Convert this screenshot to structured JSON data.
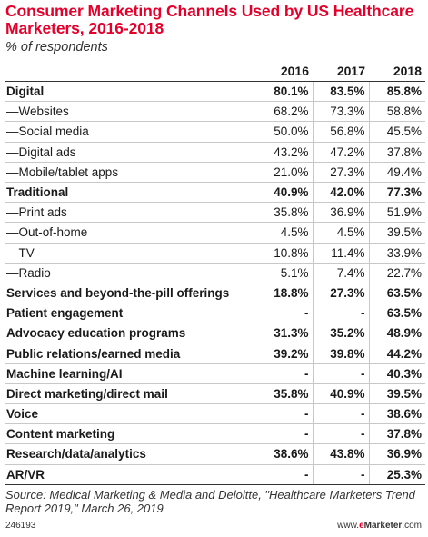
{
  "title": "Consumer Marketing Channels Used by US Healthcare Marketers, 2016-2018",
  "subtitle": "% of respondents",
  "source": "Source: Medical Marketing & Media and Deloitte, \"Healthcare Marketers Trend Report 2019,\" March 26, 2019",
  "chart_id": "246193",
  "website": {
    "prefix": "www.",
    "brand_e": "e",
    "brand_rest": "Marketer",
    "suffix": ".com"
  },
  "chart_data": {
    "type": "table",
    "title": "Consumer Marketing Channels Used by US Healthcare Marketers, 2016-2018",
    "subtitle": "% of respondents",
    "columns": [
      "2016",
      "2017",
      "2018"
    ],
    "rows": [
      {
        "label": "Digital",
        "bold": true,
        "values": [
          "80.1%",
          "83.5%",
          "85.8%"
        ]
      },
      {
        "label": "—Websites",
        "bold": false,
        "values": [
          "68.2%",
          "73.3%",
          "58.8%"
        ]
      },
      {
        "label": "—Social media",
        "bold": false,
        "values": [
          "50.0%",
          "56.8%",
          "45.5%"
        ]
      },
      {
        "label": "—Digital ads",
        "bold": false,
        "values": [
          "43.2%",
          "47.2%",
          "37.8%"
        ]
      },
      {
        "label": "—Mobile/tablet apps",
        "bold": false,
        "values": [
          "21.0%",
          "27.3%",
          "49.4%"
        ]
      },
      {
        "label": "Traditional",
        "bold": true,
        "values": [
          "40.9%",
          "42.0%",
          "77.3%"
        ]
      },
      {
        "label": "—Print ads",
        "bold": false,
        "values": [
          "35.8%",
          "36.9%",
          "51.9%"
        ]
      },
      {
        "label": "—Out-of-home",
        "bold": false,
        "values": [
          "4.5%",
          "4.5%",
          "39.5%"
        ]
      },
      {
        "label": "—TV",
        "bold": false,
        "values": [
          "10.8%",
          "11.4%",
          "33.9%"
        ]
      },
      {
        "label": "—Radio",
        "bold": false,
        "values": [
          "5.1%",
          "7.4%",
          "22.7%"
        ]
      },
      {
        "label": "Services and beyond-the-pill offerings",
        "bold": true,
        "values": [
          "18.8%",
          "27.3%",
          "63.5%"
        ]
      },
      {
        "label": "Patient engagement",
        "bold": true,
        "values": [
          "-",
          "-",
          "63.5%"
        ]
      },
      {
        "label": "Advocacy education programs",
        "bold": true,
        "values": [
          "31.3%",
          "35.2%",
          "48.9%"
        ]
      },
      {
        "label": "Public relations/earned media",
        "bold": true,
        "values": [
          "39.2%",
          "39.8%",
          "44.2%"
        ]
      },
      {
        "label": "Machine learning/AI",
        "bold": true,
        "values": [
          "-",
          "-",
          "40.3%"
        ]
      },
      {
        "label": "Direct marketing/direct mail",
        "bold": true,
        "values": [
          "35.8%",
          "40.9%",
          "39.5%"
        ]
      },
      {
        "label": "Voice",
        "bold": true,
        "values": [
          "-",
          "-",
          "38.6%"
        ]
      },
      {
        "label": "Content marketing",
        "bold": true,
        "values": [
          "-",
          "-",
          "37.8%"
        ]
      },
      {
        "label": "Research/data/analytics",
        "bold": true,
        "values": [
          "38.6%",
          "43.8%",
          "36.9%"
        ]
      },
      {
        "label": "AR/VR",
        "bold": true,
        "values": [
          "-",
          "-",
          "25.3%"
        ]
      }
    ]
  }
}
